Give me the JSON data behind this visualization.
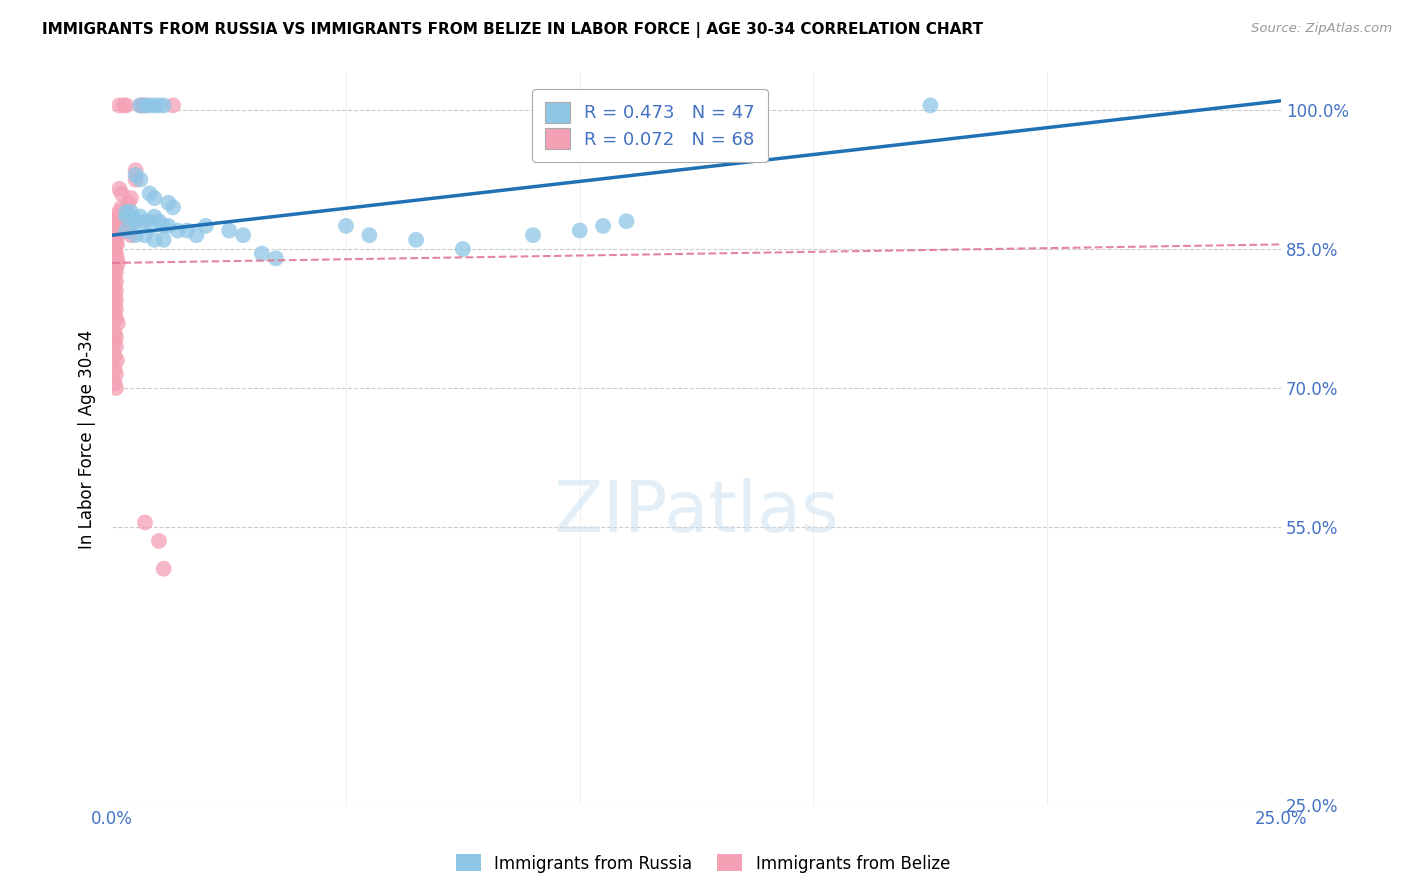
{
  "title": "IMMIGRANTS FROM RUSSIA VS IMMIGRANTS FROM BELIZE IN LABOR FORCE | AGE 30-34 CORRELATION CHART",
  "source": "Source: ZipAtlas.com",
  "ylabel": "In Labor Force | Age 30-34",
  "yticks": [
    25.0,
    55.0,
    70.0,
    85.0,
    100.0
  ],
  "xlim": [
    0.0,
    25.0
  ],
  "ylim": [
    25.0,
    104.0
  ],
  "russia_R": 0.473,
  "russia_N": 47,
  "belize_R": 0.072,
  "belize_N": 68,
  "russia_color": "#8ec6e6",
  "belize_color": "#f4a0b5",
  "russia_line_color": "#2171b5",
  "belize_line_color": "#e07090",
  "russia_scatter": [
    [
      0.3,
      88.5
    ],
    [
      0.4,
      89.0
    ],
    [
      0.5,
      88.0
    ],
    [
      0.6,
      100.5
    ],
    [
      0.7,
      100.5
    ],
    [
      0.8,
      100.5
    ],
    [
      0.9,
      100.5
    ],
    [
      1.0,
      100.5
    ],
    [
      1.1,
      100.5
    ],
    [
      0.5,
      93.0
    ],
    [
      0.6,
      92.5
    ],
    [
      0.8,
      91.0
    ],
    [
      0.9,
      90.5
    ],
    [
      1.2,
      90.0
    ],
    [
      1.3,
      89.5
    ],
    [
      0.3,
      89.0
    ],
    [
      0.4,
      88.5
    ],
    [
      0.5,
      88.0
    ],
    [
      0.6,
      88.5
    ],
    [
      0.7,
      88.0
    ],
    [
      0.8,
      88.0
    ],
    [
      0.9,
      88.5
    ],
    [
      1.0,
      88.0
    ],
    [
      1.1,
      87.5
    ],
    [
      1.2,
      87.5
    ],
    [
      1.4,
      87.0
    ],
    [
      1.6,
      87.0
    ],
    [
      1.8,
      86.5
    ],
    [
      2.0,
      87.5
    ],
    [
      0.3,
      87.0
    ],
    [
      0.5,
      86.5
    ],
    [
      0.7,
      86.5
    ],
    [
      0.9,
      86.0
    ],
    [
      1.1,
      86.0
    ],
    [
      2.5,
      87.0
    ],
    [
      2.8,
      86.5
    ],
    [
      3.2,
      84.5
    ],
    [
      3.5,
      84.0
    ],
    [
      5.0,
      87.5
    ],
    [
      5.5,
      86.5
    ],
    [
      6.5,
      86.0
    ],
    [
      7.5,
      85.0
    ],
    [
      9.0,
      86.5
    ],
    [
      10.0,
      87.0
    ],
    [
      10.5,
      87.5
    ],
    [
      11.0,
      88.0
    ],
    [
      17.5,
      100.5
    ]
  ],
  "belize_scatter": [
    [
      0.15,
      100.5
    ],
    [
      0.25,
      100.5
    ],
    [
      0.3,
      100.5
    ],
    [
      0.6,
      100.5
    ],
    [
      0.65,
      100.5
    ],
    [
      0.7,
      100.5
    ],
    [
      1.3,
      100.5
    ],
    [
      0.5,
      93.5
    ],
    [
      0.5,
      92.5
    ],
    [
      0.15,
      91.5
    ],
    [
      0.2,
      91.0
    ],
    [
      0.35,
      90.0
    ],
    [
      0.4,
      90.5
    ],
    [
      0.15,
      89.0
    ],
    [
      0.2,
      89.5
    ],
    [
      0.25,
      88.5
    ],
    [
      0.05,
      88.0
    ],
    [
      0.08,
      88.5
    ],
    [
      0.1,
      87.5
    ],
    [
      0.12,
      88.0
    ],
    [
      0.08,
      87.5
    ],
    [
      0.1,
      87.0
    ],
    [
      0.15,
      87.5
    ],
    [
      0.18,
      87.0
    ],
    [
      0.05,
      87.0
    ],
    [
      0.08,
      86.5
    ],
    [
      0.1,
      87.0
    ],
    [
      0.05,
      86.5
    ],
    [
      0.08,
      86.0
    ],
    [
      0.12,
      86.5
    ],
    [
      0.05,
      86.0
    ],
    [
      0.08,
      85.5
    ],
    [
      0.1,
      85.5
    ],
    [
      0.05,
      85.0
    ],
    [
      0.08,
      84.5
    ],
    [
      0.05,
      84.5
    ],
    [
      0.1,
      84.0
    ],
    [
      0.05,
      83.5
    ],
    [
      0.08,
      83.0
    ],
    [
      0.12,
      83.5
    ],
    [
      0.05,
      83.0
    ],
    [
      0.08,
      82.5
    ],
    [
      0.05,
      82.0
    ],
    [
      0.08,
      81.5
    ],
    [
      0.05,
      81.0
    ],
    [
      0.08,
      80.5
    ],
    [
      0.05,
      80.0
    ],
    [
      0.08,
      79.5
    ],
    [
      0.05,
      79.0
    ],
    [
      0.08,
      78.5
    ],
    [
      0.05,
      78.0
    ],
    [
      0.08,
      77.5
    ],
    [
      0.12,
      77.0
    ],
    [
      0.05,
      76.0
    ],
    [
      0.08,
      75.5
    ],
    [
      0.05,
      75.0
    ],
    [
      0.08,
      74.5
    ],
    [
      0.05,
      73.5
    ],
    [
      0.1,
      73.0
    ],
    [
      0.05,
      72.0
    ],
    [
      0.08,
      71.5
    ],
    [
      0.05,
      70.5
    ],
    [
      0.08,
      70.0
    ],
    [
      0.35,
      87.0
    ],
    [
      0.4,
      86.5
    ],
    [
      0.7,
      55.5
    ],
    [
      1.0,
      53.5
    ],
    [
      1.1,
      50.5
    ]
  ],
  "russia_trendline": [
    0.0,
    25.0,
    86.5,
    101.0
  ],
  "belize_trendline": [
    0.0,
    25.0,
    83.5,
    85.5
  ]
}
